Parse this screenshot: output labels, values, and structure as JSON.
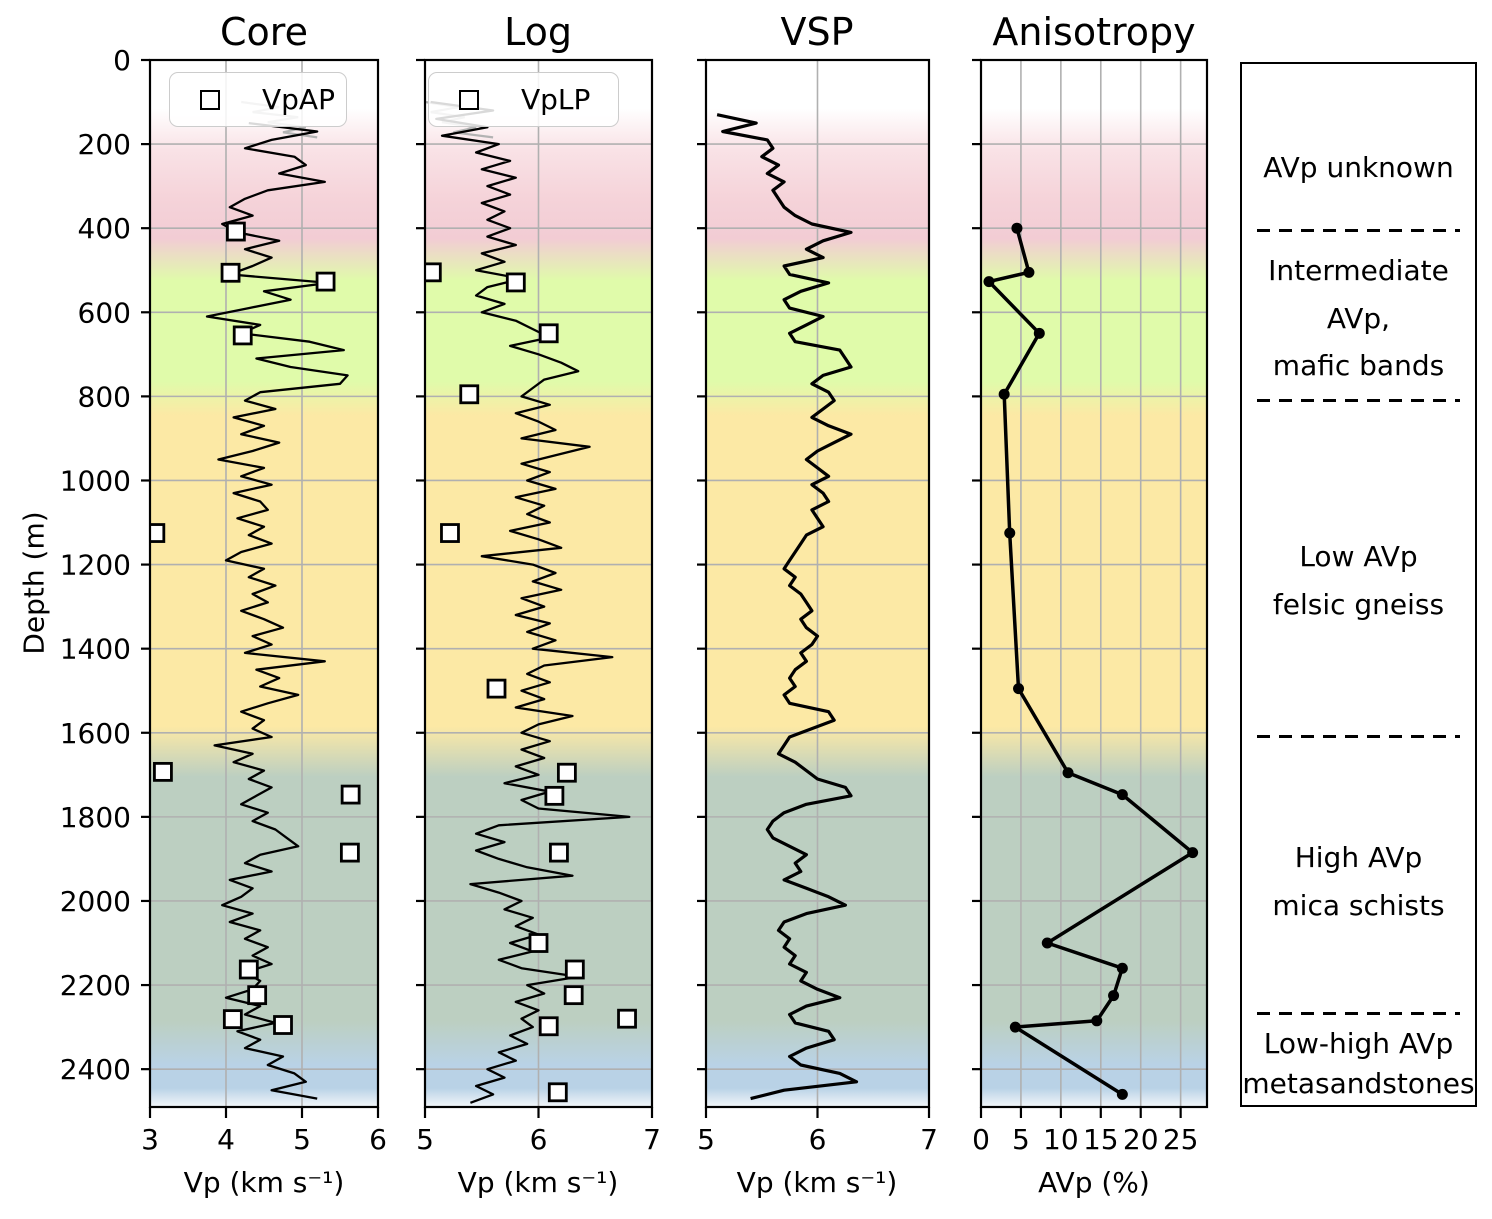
{
  "chart_data": {
    "type": "line",
    "orientation": "depth-profile",
    "depth_axis": {
      "label": "Depth (m)",
      "range": [
        0,
        2490
      ],
      "ticks": [
        0,
        200,
        400,
        600,
        800,
        1000,
        1200,
        1400,
        1600,
        1800,
        2000,
        2200,
        2400
      ]
    },
    "colors": {
      "curve": "#000000",
      "gray_curve": "#b3b3b3",
      "grid": "#b0b0b0",
      "marker_fill": "#ffffff",
      "spine": "#000000"
    },
    "background_gradient": [
      {
        "depth": 0,
        "color": "#ffffff"
      },
      {
        "depth": 115,
        "color": "#ffffff"
      },
      {
        "depth": 215,
        "color": "#f9e2e6"
      },
      {
        "depth": 330,
        "color": "#f5d3d9"
      },
      {
        "depth": 425,
        "color": "#f2ccd4"
      },
      {
        "depth": 525,
        "color": "#e0fbaa"
      },
      {
        "depth": 765,
        "color": "#e0fbaa"
      },
      {
        "depth": 845,
        "color": "#fce9a5"
      },
      {
        "depth": 1585,
        "color": "#fce9a5"
      },
      {
        "depth": 1705,
        "color": "#bccfc1"
      },
      {
        "depth": 2285,
        "color": "#bccfc1"
      },
      {
        "depth": 2390,
        "color": "#b9d2e6"
      },
      {
        "depth": 2445,
        "color": "#b9d2e6"
      },
      {
        "depth": 2490,
        "color": "#f3f7fa"
      }
    ],
    "panels": [
      {
        "key": "core",
        "title": "Core",
        "xlabel": "Vp (km s⁻¹)",
        "xrange": [
          3,
          6
        ],
        "xticks": [
          3,
          4,
          5,
          6
        ],
        "grid_x": [
          4,
          5
        ],
        "legend_label": "VpAP",
        "gray_line": [
          [
            100,
            4.2
          ],
          [
            112,
            4.7
          ],
          [
            124,
            4.35
          ],
          [
            136,
            4.95
          ],
          [
            148,
            4.55
          ],
          [
            160,
            5.05
          ],
          [
            172,
            4.75
          ],
          [
            184,
            5.2
          ]
        ],
        "line": {
          "depth_start": 150,
          "depth_step": 20,
          "values": [
            4.3,
            5.2,
            4.6,
            4.25,
            4.9,
            5.05,
            4.7,
            5.3,
            4.55,
            4.25,
            4.05,
            4.35,
            3.95,
            4.15,
            4.7,
            4.25,
            4.6,
            4.35,
            4.05,
            5.35,
            4.5,
            4.85,
            4.3,
            3.75,
            4.45,
            4.2,
            5.1,
            5.55,
            4.4,
            4.85,
            5.6,
            5.5,
            4.45,
            4.25,
            4.65,
            4.1,
            4.5,
            4.2,
            4.7,
            4.35,
            3.9,
            4.5,
            4.2,
            4.6,
            4.1,
            4.45,
            4.55,
            4.15,
            4.5,
            4.3,
            4.6,
            4.2,
            4.0,
            4.5,
            4.3,
            4.65,
            4.35,
            4.55,
            4.2,
            4.5,
            4.75,
            4.35,
            4.6,
            4.25,
            5.3,
            4.4,
            4.7,
            4.45,
            4.95,
            4.55,
            4.2,
            4.5,
            4.35,
            4.6,
            3.85,
            4.35,
            4.1,
            4.5,
            4.3,
            4.6,
            4.4,
            4.2,
            4.55,
            4.35,
            4.65,
            4.8,
            4.95,
            4.45,
            4.25,
            4.6,
            4.05,
            4.35,
            4.2,
            3.95,
            4.35,
            4.05,
            4.45,
            4.25,
            4.55,
            4.35,
            4.6,
            4.25,
            4.45,
            4.35,
            4.0,
            4.45,
            4.25,
            4.65,
            4.15,
            4.45,
            4.25,
            4.75,
            4.55,
            4.9,
            5.05,
            4.6,
            5.2
          ]
        },
        "squares": [
          [
            408,
            4.13
          ],
          [
            506,
            4.06
          ],
          [
            527,
            5.31
          ],
          [
            655,
            4.22
          ],
          [
            1125,
            3.07
          ],
          [
            1693,
            3.17
          ],
          [
            1747,
            5.64
          ],
          [
            1885,
            5.63
          ],
          [
            2163,
            4.3
          ],
          [
            2224,
            4.41
          ],
          [
            2281,
            4.09
          ],
          [
            2295,
            4.75
          ]
        ]
      },
      {
        "key": "log",
        "title": "Log",
        "xlabel": "Vp (km s⁻¹)",
        "xrange": [
          5,
          7
        ],
        "xticks": [
          5,
          6,
          7
        ],
        "grid_x": [
          6
        ],
        "legend_label": "VpLP",
        "gray_line": [
          [
            100,
            5.0
          ],
          [
            112,
            5.3
          ],
          [
            124,
            5.05
          ],
          [
            136,
            5.35
          ],
          [
            148,
            5.15
          ],
          [
            160,
            5.45
          ],
          [
            172,
            5.25
          ],
          [
            184,
            5.6
          ]
        ],
        "line": {
          "depth_start": 100,
          "depth_step": 20,
          "values": [
            5.05,
            5.6,
            5.1,
            5.55,
            5.15,
            5.65,
            5.45,
            5.75,
            5.5,
            5.8,
            5.55,
            5.75,
            5.5,
            5.7,
            5.55,
            5.75,
            5.55,
            5.8,
            5.5,
            5.7,
            5.45,
            5.85,
            5.55,
            5.45,
            5.7,
            5.5,
            5.8,
            5.95,
            6.1,
            5.75,
            6.0,
            6.2,
            6.35,
            6.05,
            5.95,
            5.85,
            6.1,
            5.8,
            6.0,
            6.15,
            5.85,
            6.45,
            6.15,
            5.85,
            6.1,
            5.9,
            6.15,
            5.8,
            6.05,
            5.9,
            6.1,
            5.75,
            6.0,
            6.2,
            5.5,
            5.95,
            6.15,
            5.95,
            6.2,
            5.85,
            6.05,
            5.8,
            6.1,
            5.9,
            6.15,
            5.95,
            6.65,
            6.05,
            5.9,
            6.1,
            5.85,
            6.05,
            5.8,
            6.3,
            6.0,
            5.85,
            6.1,
            5.85,
            6.05,
            5.8,
            6.0,
            5.7,
            6.1,
            5.85,
            6.0,
            6.8,
            5.65,
            5.45,
            5.7,
            5.45,
            5.65,
            5.9,
            6.3,
            5.4,
            5.65,
            5.85,
            5.7,
            5.95,
            5.8,
            6.0,
            5.75,
            5.95,
            5.65,
            5.85,
            6.35,
            5.9,
            6.05,
            5.8,
            6.0,
            5.85,
            5.95,
            5.75,
            5.9,
            5.65,
            5.8,
            5.55,
            5.7,
            5.45,
            5.6,
            5.4
          ]
        },
        "squares": [
          [
            505,
            5.06
          ],
          [
            529,
            5.8
          ],
          [
            650,
            6.09
          ],
          [
            795,
            5.39
          ],
          [
            1125,
            5.22
          ],
          [
            1495,
            5.63
          ],
          [
            1695,
            6.25
          ],
          [
            1750,
            6.14
          ],
          [
            1885,
            6.18
          ],
          [
            2100,
            6.0
          ],
          [
            2163,
            6.32
          ],
          [
            2224,
            6.31
          ],
          [
            2280,
            6.78
          ],
          [
            2298,
            6.09
          ],
          [
            2455,
            6.17
          ]
        ]
      },
      {
        "key": "vsp",
        "title": "VSP",
        "xlabel": "Vp (km s⁻¹)",
        "xrange": [
          5,
          7
        ],
        "xticks": [
          5,
          6,
          7
        ],
        "grid_x": [
          6
        ],
        "line": {
          "depth_start": 130,
          "depth_step": 20,
          "values": [
            5.1,
            5.45,
            5.15,
            5.55,
            5.6,
            5.5,
            5.65,
            5.55,
            5.7,
            5.6,
            5.65,
            5.7,
            5.8,
            5.95,
            6.3,
            6.05,
            5.9,
            6.05,
            5.7,
            5.75,
            6.1,
            5.85,
            5.7,
            5.75,
            6.05,
            5.9,
            5.75,
            5.8,
            6.2,
            6.25,
            6.3,
            6.05,
            5.95,
            6.1,
            6.15,
            6.05,
            5.95,
            6.1,
            6.3,
            6.15,
            6.0,
            5.9,
            6.0,
            6.1,
            5.95,
            6.05,
            6.1,
            5.95,
            6.0,
            6.05,
            5.9,
            5.85,
            5.8,
            5.75,
            5.7,
            5.8,
            5.75,
            5.85,
            5.9,
            5.95,
            5.85,
            5.9,
            6.0,
            5.95,
            5.85,
            5.9,
            5.8,
            5.75,
            5.8,
            5.7,
            5.75,
            6.1,
            6.15,
            5.95,
            5.75,
            5.7,
            5.65,
            5.8,
            5.9,
            6.0,
            6.25,
            6.3,
            5.9,
            5.7,
            5.6,
            5.55,
            5.6,
            5.75,
            5.9,
            5.8,
            5.85,
            5.7,
            5.9,
            6.1,
            6.25,
            5.9,
            5.7,
            5.65,
            5.75,
            5.7,
            5.8,
            5.75,
            5.9,
            5.85,
            6.0,
            6.2,
            5.9,
            5.75,
            5.8,
            6.1,
            6.15,
            5.9,
            5.75,
            5.85,
            6.2,
            6.35,
            5.7,
            5.4
          ]
        }
      },
      {
        "key": "aniso",
        "title": "Anisotropy",
        "xlabel": "AVp (%)",
        "xrange": [
          0,
          28.3
        ],
        "xticks": [
          0,
          5,
          10,
          15,
          20,
          25
        ],
        "grid_x": [
          5,
          10,
          15,
          20,
          25
        ],
        "points": [
          [
            400,
            4.5
          ],
          [
            505,
            6.0
          ],
          [
            527,
            1.0
          ],
          [
            650,
            7.3
          ],
          [
            795,
            2.9
          ],
          [
            1125,
            3.6
          ],
          [
            1495,
            4.7
          ],
          [
            1695,
            10.9
          ],
          [
            1747,
            17.7
          ],
          [
            1885,
            26.5
          ],
          [
            2100,
            8.3
          ],
          [
            2160,
            17.7
          ],
          [
            2225,
            16.6
          ],
          [
            2285,
            14.5
          ],
          [
            2300,
            4.3
          ],
          [
            2460,
            17.7
          ]
        ]
      }
    ],
    "zone_legend": {
      "boundaries_depth": [
        401,
        805,
        1604,
        2264
      ],
      "labels": [
        {
          "text": "AVp unknown",
          "depth": 252
        },
        {
          "text": "Intermediate",
          "depth": 497
        },
        {
          "text": "AVp,",
          "depth": 612
        },
        {
          "text": "mafic bands",
          "depth": 722
        },
        {
          "text": "Low AVp",
          "depth": 1177
        },
        {
          "text": "felsic gneiss",
          "depth": 1291
        },
        {
          "text": "High AVp",
          "depth": 1894
        },
        {
          "text": "mica schists",
          "depth": 2008
        },
        {
          "text": "Low-high AVp",
          "depth": 2336
        },
        {
          "text": "metasandstones",
          "depth": 2431
        }
      ]
    }
  }
}
